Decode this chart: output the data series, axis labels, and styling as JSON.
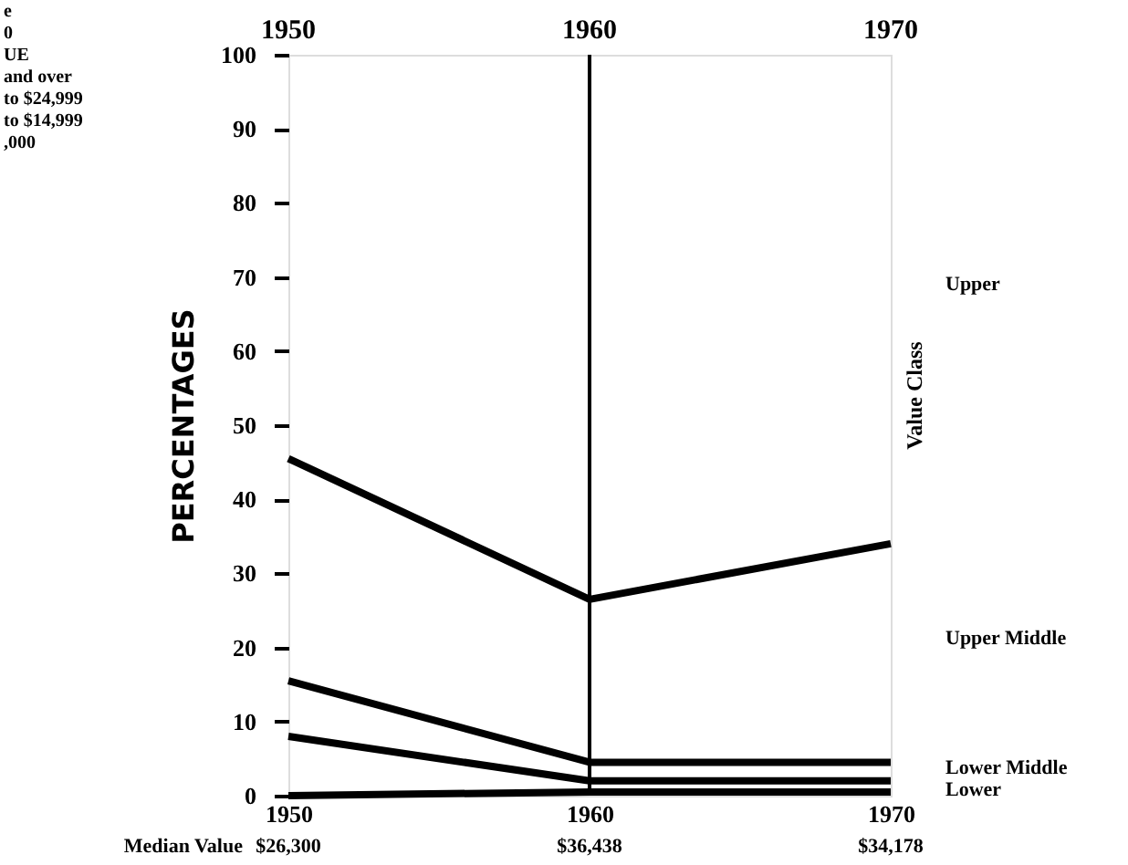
{
  "chart_data": {
    "type": "line",
    "categories": [
      "1950",
      "1960",
      "1970"
    ],
    "series": [
      {
        "color": "#000000",
        "values": [
          45.5,
          26.5,
          34
        ]
      },
      {
        "color": "#000000",
        "values": [
          15.5,
          4.5,
          4.5
        ]
      },
      {
        "color": "#000000",
        "values": [
          8,
          2,
          2
        ]
      },
      {
        "color": "#000000",
        "values": [
          0,
          0.5,
          0.5
        ]
      }
    ],
    "ylabel": "PERCENTAGES",
    "y2label": "Value Class",
    "xlabel": "Median Value",
    "ylim": [
      0,
      100
    ],
    "yticks": [
      0,
      10,
      20,
      30,
      40,
      50,
      60,
      70,
      80,
      90,
      100
    ],
    "grid": false,
    "marker": "none",
    "line_style": "solid",
    "ref_lines": [
      {
        "axis": "x",
        "value": "1960"
      }
    ],
    "annotations": [
      "$26,300",
      "$36,438",
      "$34,178",
      "Upper",
      "Upper Middle",
      "Lower Middle",
      "Lower",
      "e",
      "0",
      "UE",
      "and over",
      "to $24,999",
      "to $14,999",
      ",000"
    ]
  }
}
